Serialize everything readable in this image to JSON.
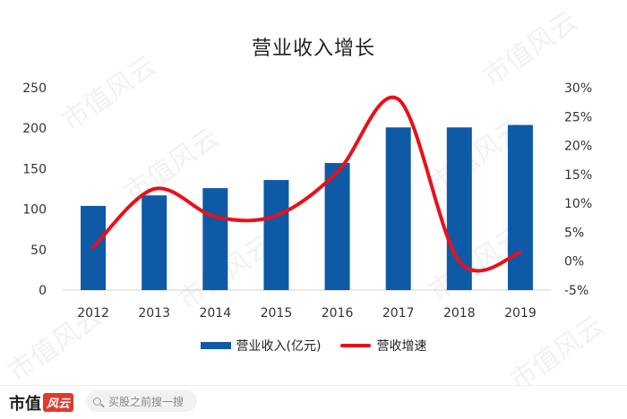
{
  "chart_data": {
    "type": "bar",
    "title": "营业收入增长",
    "categories": [
      "2012",
      "2013",
      "2014",
      "2015",
      "2016",
      "2017",
      "2018",
      "2019"
    ],
    "series": [
      {
        "name": "营业收入(亿元)",
        "type": "bar",
        "axis": "left",
        "values": [
          104,
          117,
          126,
          136,
          157,
          201,
          201,
          204
        ],
        "color": "#0e5aa7"
      },
      {
        "name": "营收增速",
        "type": "line",
        "smooth": true,
        "axis": "right",
        "values": [
          2.4,
          12.5,
          7.7,
          7.9,
          15.4,
          28.0,
          0.0,
          1.5
        ],
        "color": "#e8101a"
      }
    ],
    "left_axis": {
      "ylim": [
        0,
        250
      ],
      "ticks": [
        "0",
        "50",
        "100",
        "150",
        "200",
        "250"
      ]
    },
    "right_axis": {
      "ylim": [
        -5,
        30
      ],
      "ticks": [
        "-5%",
        "0%",
        "5%",
        "10%",
        "15%",
        "20%",
        "25%",
        "30%"
      ]
    },
    "legend_position": "bottom",
    "grid": false
  },
  "watermark_text": "市值风云",
  "footer": {
    "brand": "市值",
    "brand_accent": "风云",
    "search_placeholder": "买股之前搜一搜"
  }
}
